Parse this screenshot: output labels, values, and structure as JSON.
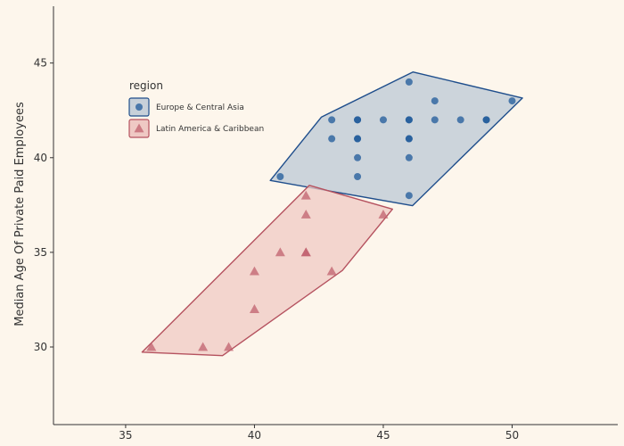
{
  "chart_data": {
    "type": "scatter",
    "title": "",
    "xlabel": "",
    "ylabel": "Median Age Of Private Paid Employees",
    "xlim": [
      32.2,
      54.1
    ],
    "ylim": [
      25.9,
      48.0
    ],
    "x_ticks": [
      35,
      40,
      45,
      50
    ],
    "y_ticks": [
      30,
      35,
      40,
      45
    ],
    "grid": false,
    "legend": {
      "title": "region",
      "position": "top-left"
    },
    "series": [
      {
        "name": "Europe & Central Asia",
        "marker": "circle",
        "color": "#1f5a99",
        "hull_fill": "#c7d0d9",
        "hull_stroke": "#1f4e8c",
        "points": [
          [
            41,
            39
          ],
          [
            43,
            42
          ],
          [
            43,
            41
          ],
          [
            44,
            42
          ],
          [
            44,
            42
          ],
          [
            44,
            41
          ],
          [
            44,
            41
          ],
          [
            44,
            40
          ],
          [
            44,
            39
          ],
          [
            45,
            42
          ],
          [
            46,
            44
          ],
          [
            46,
            42
          ],
          [
            46,
            42
          ],
          [
            46,
            41
          ],
          [
            46,
            41
          ],
          [
            46,
            40
          ],
          [
            46,
            38
          ],
          [
            47,
            43
          ],
          [
            47,
            42
          ],
          [
            48,
            42
          ],
          [
            49,
            42
          ],
          [
            49,
            42
          ],
          [
            50,
            43
          ]
        ]
      },
      {
        "name": "Latin America & Caribbean",
        "marker": "triangle",
        "color": "#c0606e",
        "hull_fill": "#efc9c4",
        "hull_stroke": "#b5525f",
        "points": [
          [
            36,
            30
          ],
          [
            38,
            30
          ],
          [
            39,
            30
          ],
          [
            40,
            34
          ],
          [
            40,
            32
          ],
          [
            41,
            35
          ],
          [
            42,
            38
          ],
          [
            42,
            37
          ],
          [
            42,
            35
          ],
          [
            42,
            35
          ],
          [
            43,
            34
          ],
          [
            45,
            37
          ]
        ]
      }
    ]
  }
}
